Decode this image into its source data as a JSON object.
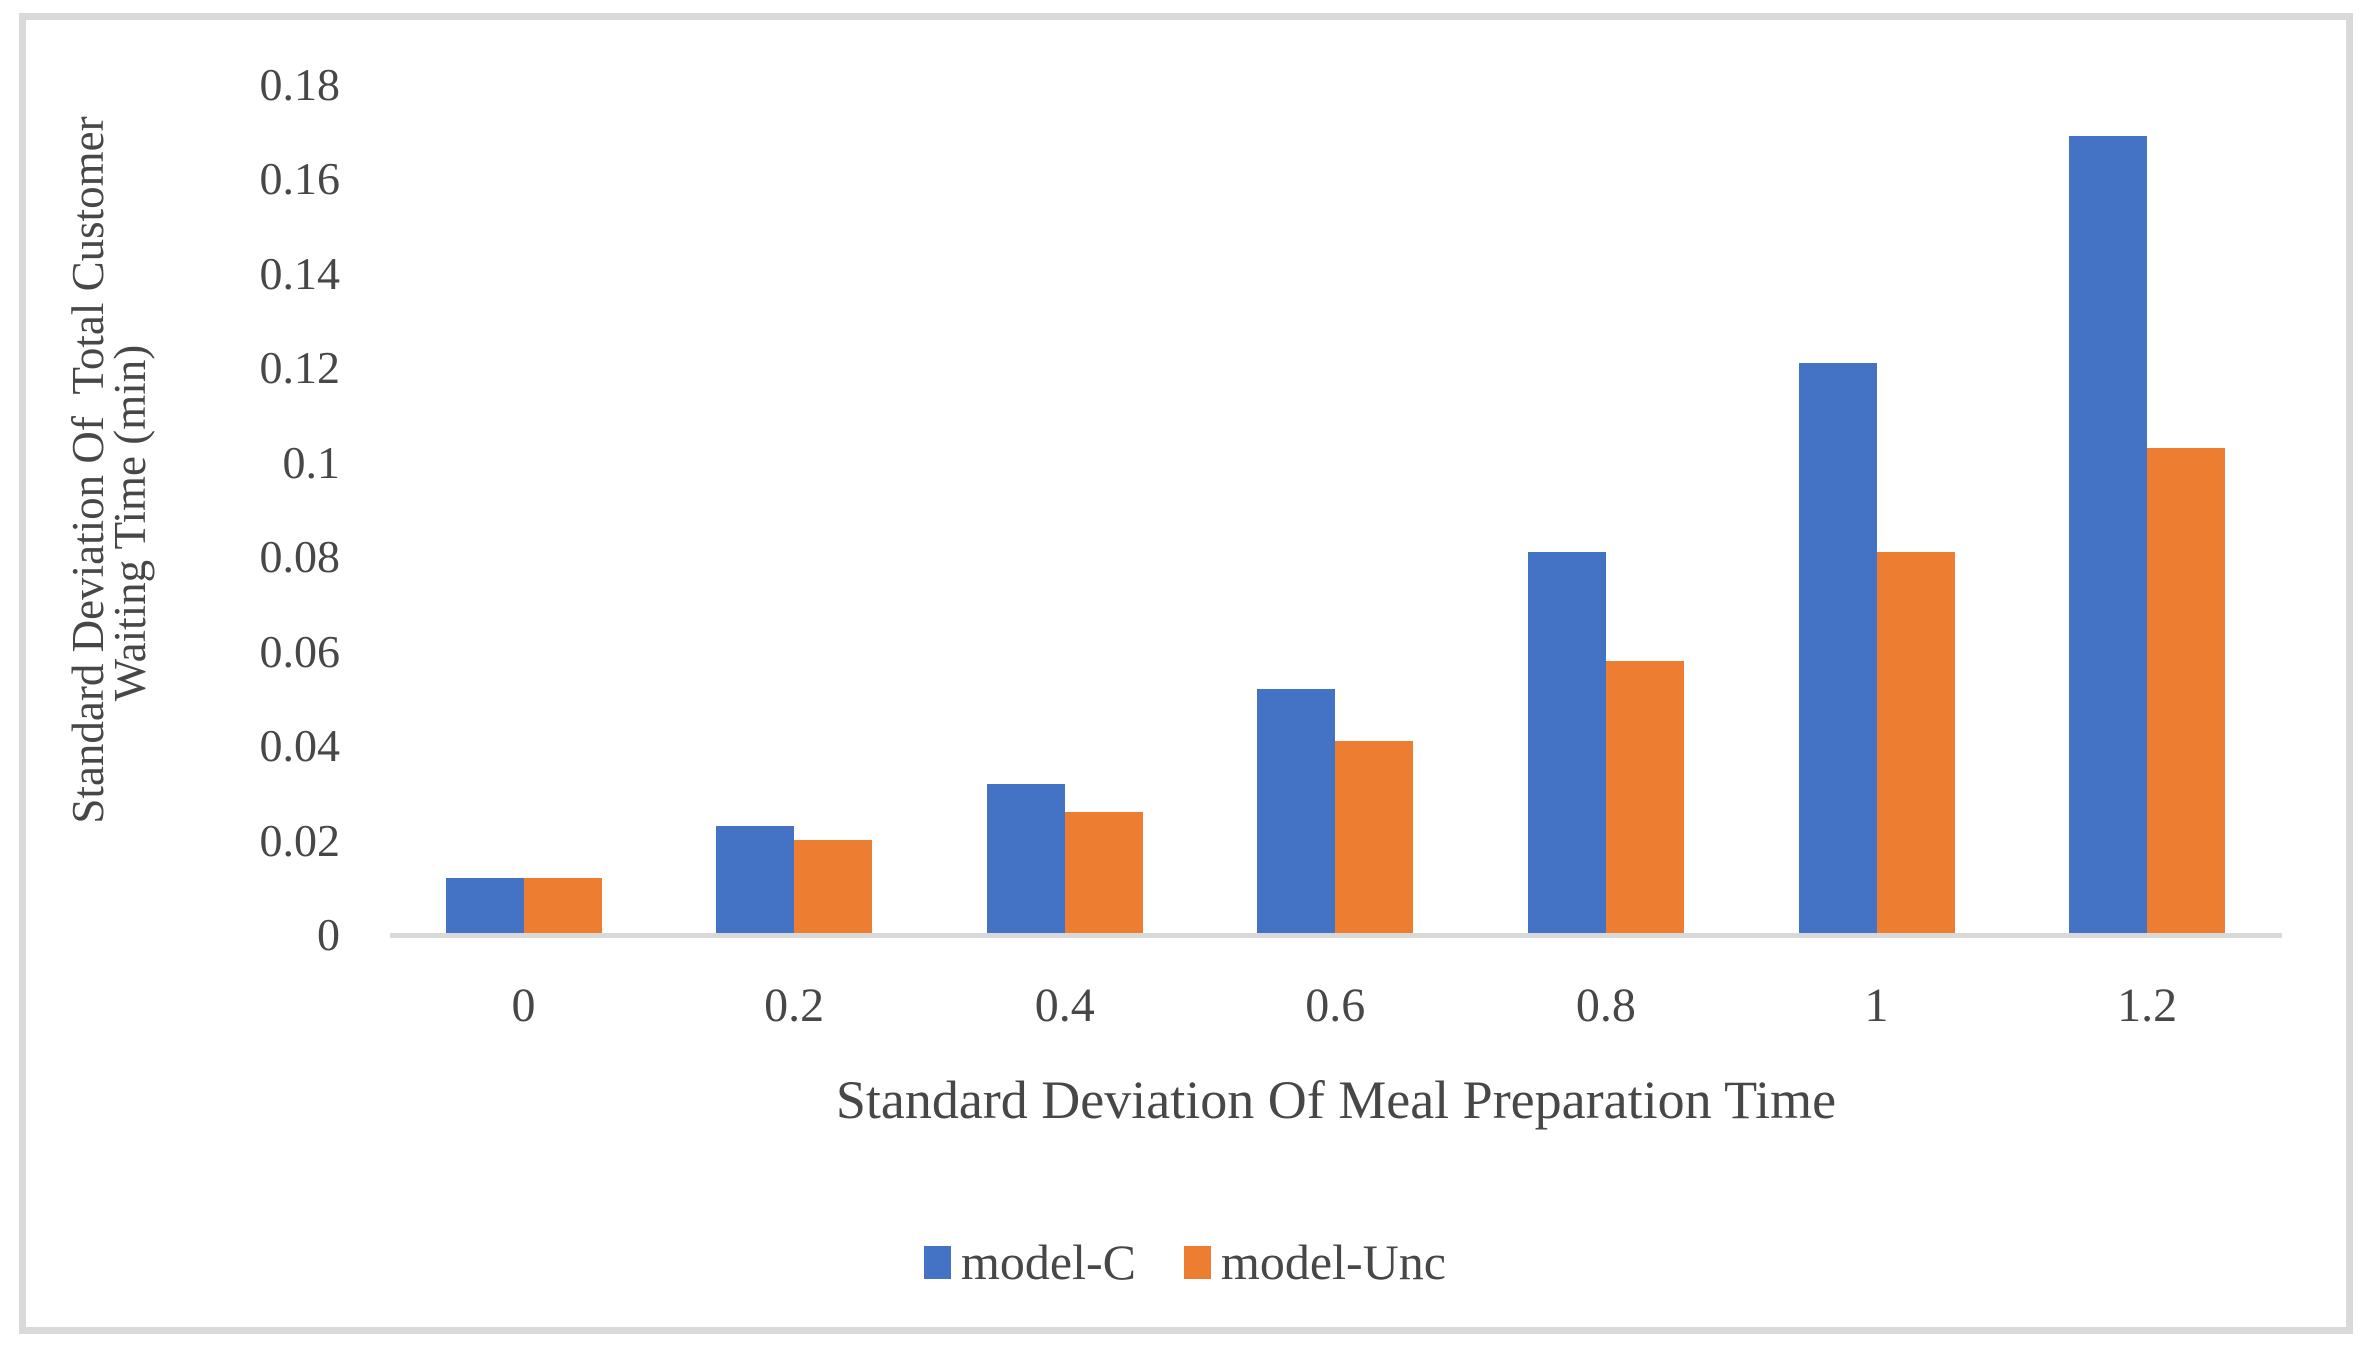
{
  "figure": {
    "background": "#ffffff",
    "border_color": "#d9d9d9",
    "axis_line_color": "#d9d9d9",
    "text_color": "#474747"
  },
  "chart_data": {
    "type": "bar",
    "title": "",
    "xlabel": "Standard Deviation Of Meal Preparation Time",
    "ylabel_lines": [
      "Standard Deviation Of  Total Customer",
      "Waiting Time (min)"
    ],
    "ylabel": "Standard Deviation Of Total Customer Waiting Time (min)",
    "categories": [
      "0",
      "0.2",
      "0.4",
      "0.6",
      "0.8",
      "1",
      "1.2"
    ],
    "series": [
      {
        "name": "model-C",
        "color": "#4472c4",
        "values": [
          0.012,
          0.023,
          0.032,
          0.052,
          0.081,
          0.121,
          0.169
        ]
      },
      {
        "name": "model-Unc",
        "color": "#ed7d31",
        "values": [
          0.012,
          0.02,
          0.026,
          0.041,
          0.058,
          0.081,
          0.103
        ]
      }
    ],
    "y_ticks": [
      0,
      0.02,
      0.04,
      0.06,
      0.08,
      0.1,
      0.12,
      0.14,
      0.16,
      0.18
    ],
    "y_tick_labels": [
      "0",
      "0.02",
      "0.04",
      "0.06",
      "0.08",
      "0.1",
      "0.12",
      "0.14",
      "0.16",
      "0.18"
    ],
    "ylim": [
      0,
      0.18
    ],
    "grid": false,
    "legend_position": "bottom"
  }
}
